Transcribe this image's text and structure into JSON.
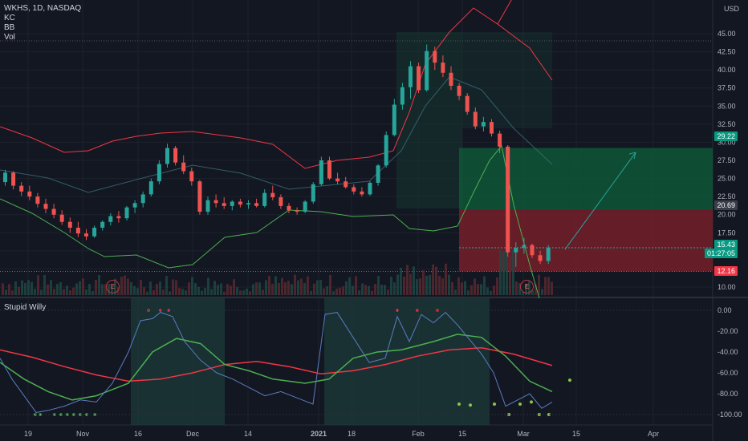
{
  "header": {
    "symbol": "WKHS, 1D, NASDAQ",
    "currency": "USD",
    "indicators": [
      "KC",
      "BB",
      "Vol"
    ]
  },
  "sub_panel": {
    "title": "Stupid Willy"
  },
  "price_axis": {
    "ticks": [
      "45.00",
      "42.50",
      "40.00",
      "37.50",
      "35.00",
      "32.50",
      "30.00",
      "27.50",
      "25.00",
      "22.50",
      "20.00",
      "17.50",
      "15.00",
      "12.50",
      "10.00"
    ]
  },
  "osc_axis": {
    "ticks": [
      "0.00",
      "-20.00",
      "-40.00",
      "-60.00",
      "-80.00",
      "-100.00"
    ]
  },
  "time_axis": {
    "ticks": [
      "19",
      "Nov",
      "16",
      "Dec",
      "14",
      "2021",
      "18",
      "Feb",
      "15",
      "Mar",
      "15",
      "Apr"
    ]
  },
  "price_tags": {
    "target": "29.22",
    "entry": "20.69",
    "current": "15.43",
    "countdown": "01:27:05",
    "stop": "12.16"
  },
  "earnings_badges": [
    "E",
    "E"
  ],
  "colors": {
    "background": "#131722",
    "up": "#26a69a",
    "down": "#ef5350",
    "keltner": "#f23645",
    "bollinger": "#26a69a",
    "oscillator_slow": "#f23645",
    "oscillator_fast": "#4caf50",
    "oscillator_raw": "#5b7bbf"
  },
  "chart_data": {
    "type": "candlestick",
    "y_range": [
      9,
      46
    ],
    "candles": [
      [
        24.5,
        26.2,
        24.0,
        25.8
      ],
      [
        25.8,
        26.0,
        23.5,
        24.0
      ],
      [
        24.0,
        24.5,
        22.6,
        23.2
      ],
      [
        23.2,
        24.0,
        22.0,
        22.5
      ],
      [
        22.5,
        23.0,
        21.0,
        21.5
      ],
      [
        21.5,
        22.2,
        20.2,
        20.8
      ],
      [
        20.8,
        21.5,
        19.5,
        20.0
      ],
      [
        20.0,
        20.6,
        18.6,
        19.0
      ],
      [
        19.0,
        19.6,
        17.5,
        18.2
      ],
      [
        18.2,
        19.0,
        16.9,
        17.4
      ],
      [
        17.4,
        18.0,
        16.5,
        17.0
      ],
      [
        17.0,
        18.5,
        16.8,
        18.2
      ],
      [
        18.2,
        19.2,
        17.8,
        19.0
      ],
      [
        19.0,
        20.2,
        18.5,
        19.8
      ],
      [
        19.8,
        20.5,
        18.9,
        19.5
      ],
      [
        19.5,
        21.2,
        19.2,
        21.0
      ],
      [
        21.0,
        22.0,
        20.2,
        21.6
      ],
      [
        21.6,
        23.2,
        21.0,
        22.8
      ],
      [
        22.8,
        25.0,
        22.5,
        24.6
      ],
      [
        24.6,
        27.5,
        24.2,
        27.0
      ],
      [
        27.0,
        29.8,
        26.5,
        29.2
      ],
      [
        29.2,
        29.5,
        26.8,
        27.2
      ],
      [
        27.2,
        28.2,
        25.6,
        26.0
      ],
      [
        26.0,
        26.5,
        24.0,
        24.6
      ],
      [
        24.6,
        24.8,
        20.0,
        20.4
      ],
      [
        20.4,
        22.5,
        20.0,
        22.0
      ],
      [
        22.0,
        22.8,
        21.0,
        21.6
      ],
      [
        21.6,
        22.4,
        20.8,
        21.2
      ],
      [
        21.2,
        22.0,
        20.6,
        21.8
      ],
      [
        21.8,
        22.2,
        21.0,
        21.4
      ],
      [
        21.4,
        22.0,
        20.8,
        21.6
      ],
      [
        21.6,
        22.2,
        21.0,
        21.2
      ],
      [
        21.2,
        23.5,
        21.0,
        23.0
      ],
      [
        23.0,
        24.0,
        22.0,
        22.4
      ],
      [
        22.4,
        22.8,
        20.8,
        21.2
      ],
      [
        21.2,
        21.6,
        20.2,
        20.6
      ],
      [
        20.6,
        21.0,
        20.0,
        20.4
      ],
      [
        20.4,
        22.0,
        20.2,
        21.8
      ],
      [
        21.8,
        24.5,
        21.5,
        24.2
      ],
      [
        24.2,
        28.0,
        24.0,
        27.5
      ],
      [
        27.5,
        28.0,
        24.8,
        25.0
      ],
      [
        25.0,
        25.8,
        24.2,
        24.6
      ],
      [
        24.6,
        25.2,
        23.6,
        23.8
      ],
      [
        23.8,
        24.2,
        22.8,
        23.2
      ],
      [
        23.2,
        23.8,
        22.5,
        22.8
      ],
      [
        22.8,
        24.6,
        22.6,
        24.4
      ],
      [
        24.4,
        27.0,
        24.0,
        26.8
      ],
      [
        26.8,
        31.5,
        26.5,
        31.0
      ],
      [
        31.0,
        36.0,
        30.8,
        35.2
      ],
      [
        35.2,
        38.2,
        34.5,
        37.6
      ],
      [
        37.6,
        41.2,
        36.0,
        40.5
      ],
      [
        40.5,
        41.0,
        36.8,
        37.2
      ],
      [
        37.2,
        43.5,
        37.0,
        42.6
      ],
      [
        42.6,
        43.2,
        40.0,
        41.0
      ],
      [
        41.0,
        42.0,
        39.0,
        39.6
      ],
      [
        39.6,
        40.5,
        37.2,
        37.8
      ],
      [
        37.8,
        38.2,
        35.8,
        36.4
      ],
      [
        36.4,
        36.8,
        33.8,
        34.2
      ],
      [
        34.2,
        34.8,
        31.8,
        32.2
      ],
      [
        32.2,
        33.5,
        31.5,
        32.8
      ],
      [
        32.8,
        33.2,
        30.8,
        31.2
      ],
      [
        31.2,
        31.6,
        28.5,
        29.4
      ],
      [
        29.4,
        29.6,
        14.2,
        14.8
      ],
      [
        14.8,
        16.2,
        12.8,
        15.4
      ],
      [
        15.4,
        16.8,
        14.6,
        15.8
      ],
      [
        15.8,
        16.0,
        14.0,
        14.4
      ],
      [
        14.4,
        15.0,
        13.2,
        13.6
      ],
      [
        13.6,
        15.8,
        13.2,
        15.43
      ]
    ]
  }
}
